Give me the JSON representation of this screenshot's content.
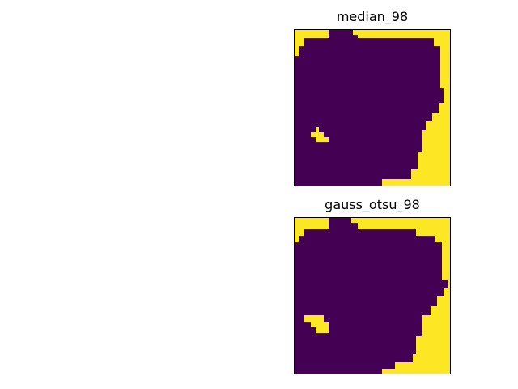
{
  "figure": {
    "panels": [
      {
        "title": "median_98"
      },
      {
        "title": "gauss_otsu_98"
      }
    ]
  },
  "colors": {
    "low": "#440154",
    "high": "#fde725",
    "frame": "#000000",
    "background": "#ffffff"
  }
}
